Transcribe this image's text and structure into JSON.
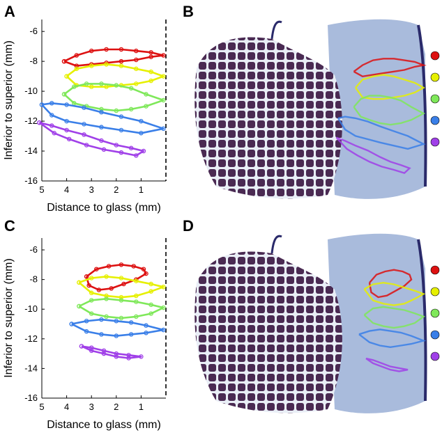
{
  "panels": {
    "A": "A",
    "B": "B",
    "C": "C",
    "D": "D"
  },
  "colors": {
    "red": "#dd1111",
    "yellow": "#e6f000",
    "green": "#7fe85a",
    "blue": "#3a7fe8",
    "purple": "#a040e8",
    "tissue_muscle": "#4a2a52",
    "tissue_fascia": "#e8ecf4",
    "tissue_connective": "#9fb4d8",
    "skin_edge": "#2a2a6a"
  },
  "chart_data": [
    {
      "type": "line",
      "panel": "A",
      "xlabel": "Distance to glass (mm)",
      "ylabel": "Inferior to superior (mm)",
      "xlim": [
        5,
        0
      ],
      "ylim": [
        -16,
        -5.2
      ],
      "x_ticks": [
        "5",
        "4",
        "3",
        "2",
        "1"
      ],
      "y_ticks": [
        "-6",
        "-8",
        "-10",
        "-12",
        "-14",
        "-16"
      ],
      "reference_line_x": 0,
      "series": [
        {
          "color": "red",
          "x": [
            4.1,
            3.6,
            3.0,
            2.4,
            1.8,
            1.2,
            0.6,
            0.1,
            0.6,
            1.2,
            1.8,
            2.4,
            3.0,
            3.6,
            4.1
          ],
          "y": [
            -8.0,
            -7.6,
            -7.3,
            -7.2,
            -7.2,
            -7.3,
            -7.4,
            -7.6,
            -7.7,
            -7.9,
            -8.0,
            -8.1,
            -8.2,
            -8.3,
            -8.0
          ]
        },
        {
          "color": "yellow",
          "x": [
            4.0,
            3.6,
            3.0,
            2.4,
            1.8,
            1.2,
            0.6,
            0.1,
            0.6,
            1.2,
            1.8,
            2.4,
            3.0,
            3.6,
            4.0
          ],
          "y": [
            -9.0,
            -8.5,
            -8.3,
            -8.2,
            -8.3,
            -8.5,
            -8.7,
            -9.0,
            -9.3,
            -9.5,
            -9.6,
            -9.7,
            -9.7,
            -9.6,
            -9.0
          ]
        },
        {
          "color": "green",
          "x": [
            4.1,
            3.7,
            3.2,
            2.6,
            2.0,
            1.4,
            0.8,
            0.1,
            0.8,
            1.4,
            2.0,
            2.6,
            3.2,
            3.7,
            4.1
          ],
          "y": [
            -10.2,
            -9.7,
            -9.5,
            -9.5,
            -9.6,
            -9.8,
            -10.2,
            -10.6,
            -11.0,
            -11.2,
            -11.3,
            -11.2,
            -11.0,
            -10.8,
            -10.2
          ]
        },
        {
          "color": "blue",
          "x": [
            5.0,
            4.6,
            4.0,
            3.3,
            2.6,
            1.8,
            1.0,
            0.1,
            1.0,
            1.8,
            2.6,
            3.3,
            4.0,
            4.6,
            5.0
          ],
          "y": [
            -10.9,
            -10.8,
            -10.9,
            -11.1,
            -11.4,
            -11.7,
            -12.0,
            -12.5,
            -12.8,
            -12.6,
            -12.4,
            -12.2,
            -12.0,
            -11.6,
            -10.9
          ]
        },
        {
          "color": "purple",
          "x": [
            5.1,
            4.6,
            4.0,
            3.3,
            2.6,
            2.0,
            1.4,
            0.9,
            1.2,
            1.8,
            2.5,
            3.2,
            3.9,
            4.5,
            5.1
          ],
          "y": [
            -12.1,
            -12.3,
            -12.6,
            -12.9,
            -13.3,
            -13.6,
            -13.8,
            -14.0,
            -14.3,
            -14.1,
            -13.9,
            -13.6,
            -13.2,
            -12.8,
            -12.1
          ]
        }
      ]
    },
    {
      "type": "line",
      "panel": "C",
      "xlabel": "Distance to glass (mm)",
      "ylabel": "Inferior to superior (mm)",
      "xlim": [
        5,
        0
      ],
      "ylim": [
        -16,
        -5.2
      ],
      "x_ticks": [
        "5",
        "4",
        "3",
        "2",
        "1"
      ],
      "y_ticks": [
        "-6",
        "-8",
        "-10",
        "-12",
        "-14",
        "-16"
      ],
      "reference_line_x": 0,
      "series": [
        {
          "color": "red",
          "x": [
            3.2,
            2.8,
            2.3,
            1.8,
            1.3,
            0.9,
            0.8,
            1.2,
            1.7,
            2.2,
            2.7,
            3.1,
            3.2
          ],
          "y": [
            -7.8,
            -7.3,
            -7.1,
            -7.0,
            -7.1,
            -7.3,
            -7.6,
            -8.0,
            -8.3,
            -8.6,
            -8.7,
            -8.4,
            -7.8
          ]
        },
        {
          "color": "yellow",
          "x": [
            3.5,
            3.0,
            2.4,
            1.8,
            1.2,
            0.6,
            0.1,
            0.6,
            1.2,
            1.8,
            2.4,
            3.0,
            3.5
          ],
          "y": [
            -8.2,
            -7.9,
            -7.8,
            -7.9,
            -8.1,
            -8.3,
            -8.5,
            -8.8,
            -9.1,
            -9.2,
            -9.1,
            -8.9,
            -8.2
          ]
        },
        {
          "color": "green",
          "x": [
            3.5,
            3.0,
            2.4,
            1.8,
            1.2,
            0.6,
            0.1,
            0.6,
            1.2,
            1.8,
            2.4,
            3.0,
            3.5
          ],
          "y": [
            -9.8,
            -9.4,
            -9.3,
            -9.4,
            -9.5,
            -9.7,
            -9.9,
            -10.3,
            -10.5,
            -10.6,
            -10.5,
            -10.3,
            -9.8
          ]
        },
        {
          "color": "blue",
          "x": [
            3.8,
            3.2,
            2.6,
            2.0,
            1.4,
            0.8,
            0.1,
            0.8,
            1.4,
            2.0,
            2.6,
            3.2,
            3.8
          ],
          "y": [
            -11.0,
            -10.8,
            -10.7,
            -10.8,
            -10.9,
            -11.1,
            -11.4,
            -11.6,
            -11.7,
            -11.8,
            -11.7,
            -11.5,
            -11.0
          ]
        },
        {
          "color": "purple",
          "x": [
            3.4,
            3.0,
            2.5,
            2.0,
            1.5,
            1.0,
            1.5,
            2.0,
            2.5,
            3.0,
            3.4
          ],
          "y": [
            -12.5,
            -12.6,
            -12.8,
            -13.0,
            -13.1,
            -13.2,
            -13.3,
            -13.2,
            -13.0,
            -12.8,
            -12.5
          ]
        }
      ]
    }
  ]
}
